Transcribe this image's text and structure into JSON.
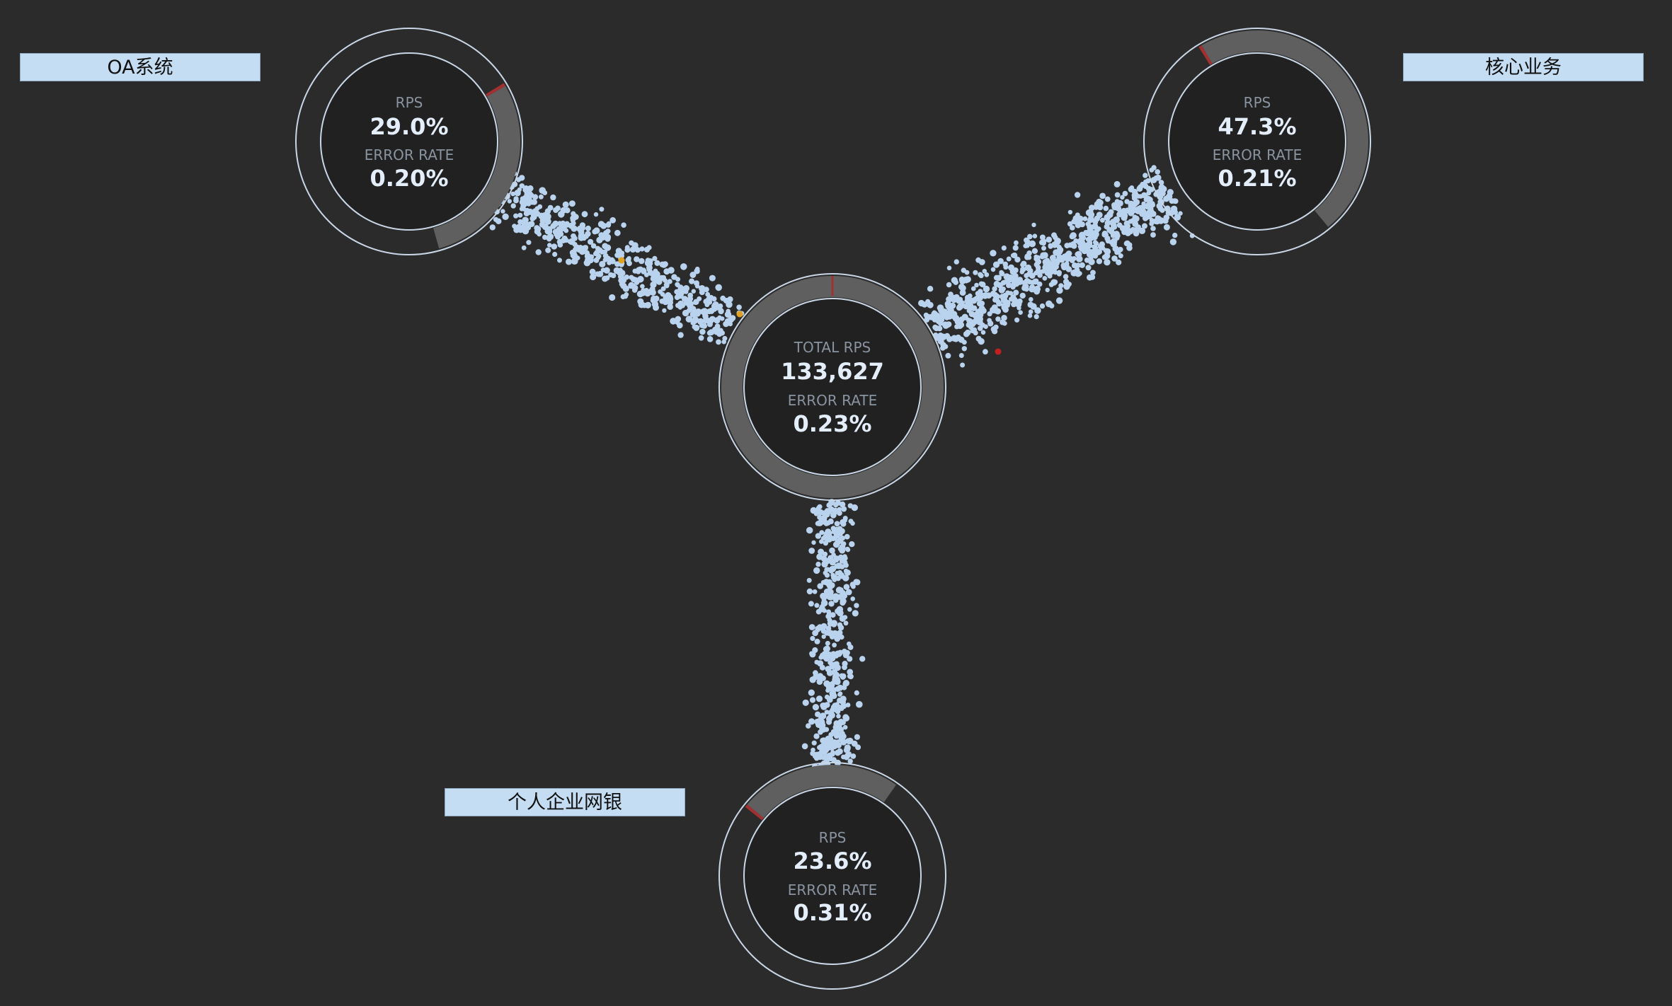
{
  "colors": {
    "background": "#2b2b2b",
    "particle": "#b9d3ee",
    "ring_stroke": "#c8d6e6",
    "gauge_track": "#5f5f5f",
    "gauge_error": "#a33030",
    "particle_warn": "#e0a020",
    "particle_error": "#c02020",
    "label_bg": "#c5ddf2"
  },
  "center": {
    "caption": "TOTAL RPS",
    "value": "133,627",
    "error_caption": "ERROR RATE",
    "error_value": "0.23%"
  },
  "nodes": [
    {
      "id": "oa",
      "label": "OA系统",
      "caption": "RPS",
      "value": "29.0%",
      "error_caption": "ERROR RATE",
      "error_value": "0.20%",
      "rps_share": 0.29,
      "error_rate": 0.002
    },
    {
      "id": "core",
      "label": "核心业务",
      "caption": "RPS",
      "value": "47.3%",
      "error_caption": "ERROR RATE",
      "error_value": "0.21%",
      "rps_share": 0.473,
      "error_rate": 0.0021
    },
    {
      "id": "bank",
      "label": "个人企业网银",
      "caption": "RPS",
      "value": "23.6%",
      "error_caption": "ERROR RATE",
      "error_value": "0.31%",
      "rps_share": 0.236,
      "error_rate": 0.0031
    }
  ]
}
